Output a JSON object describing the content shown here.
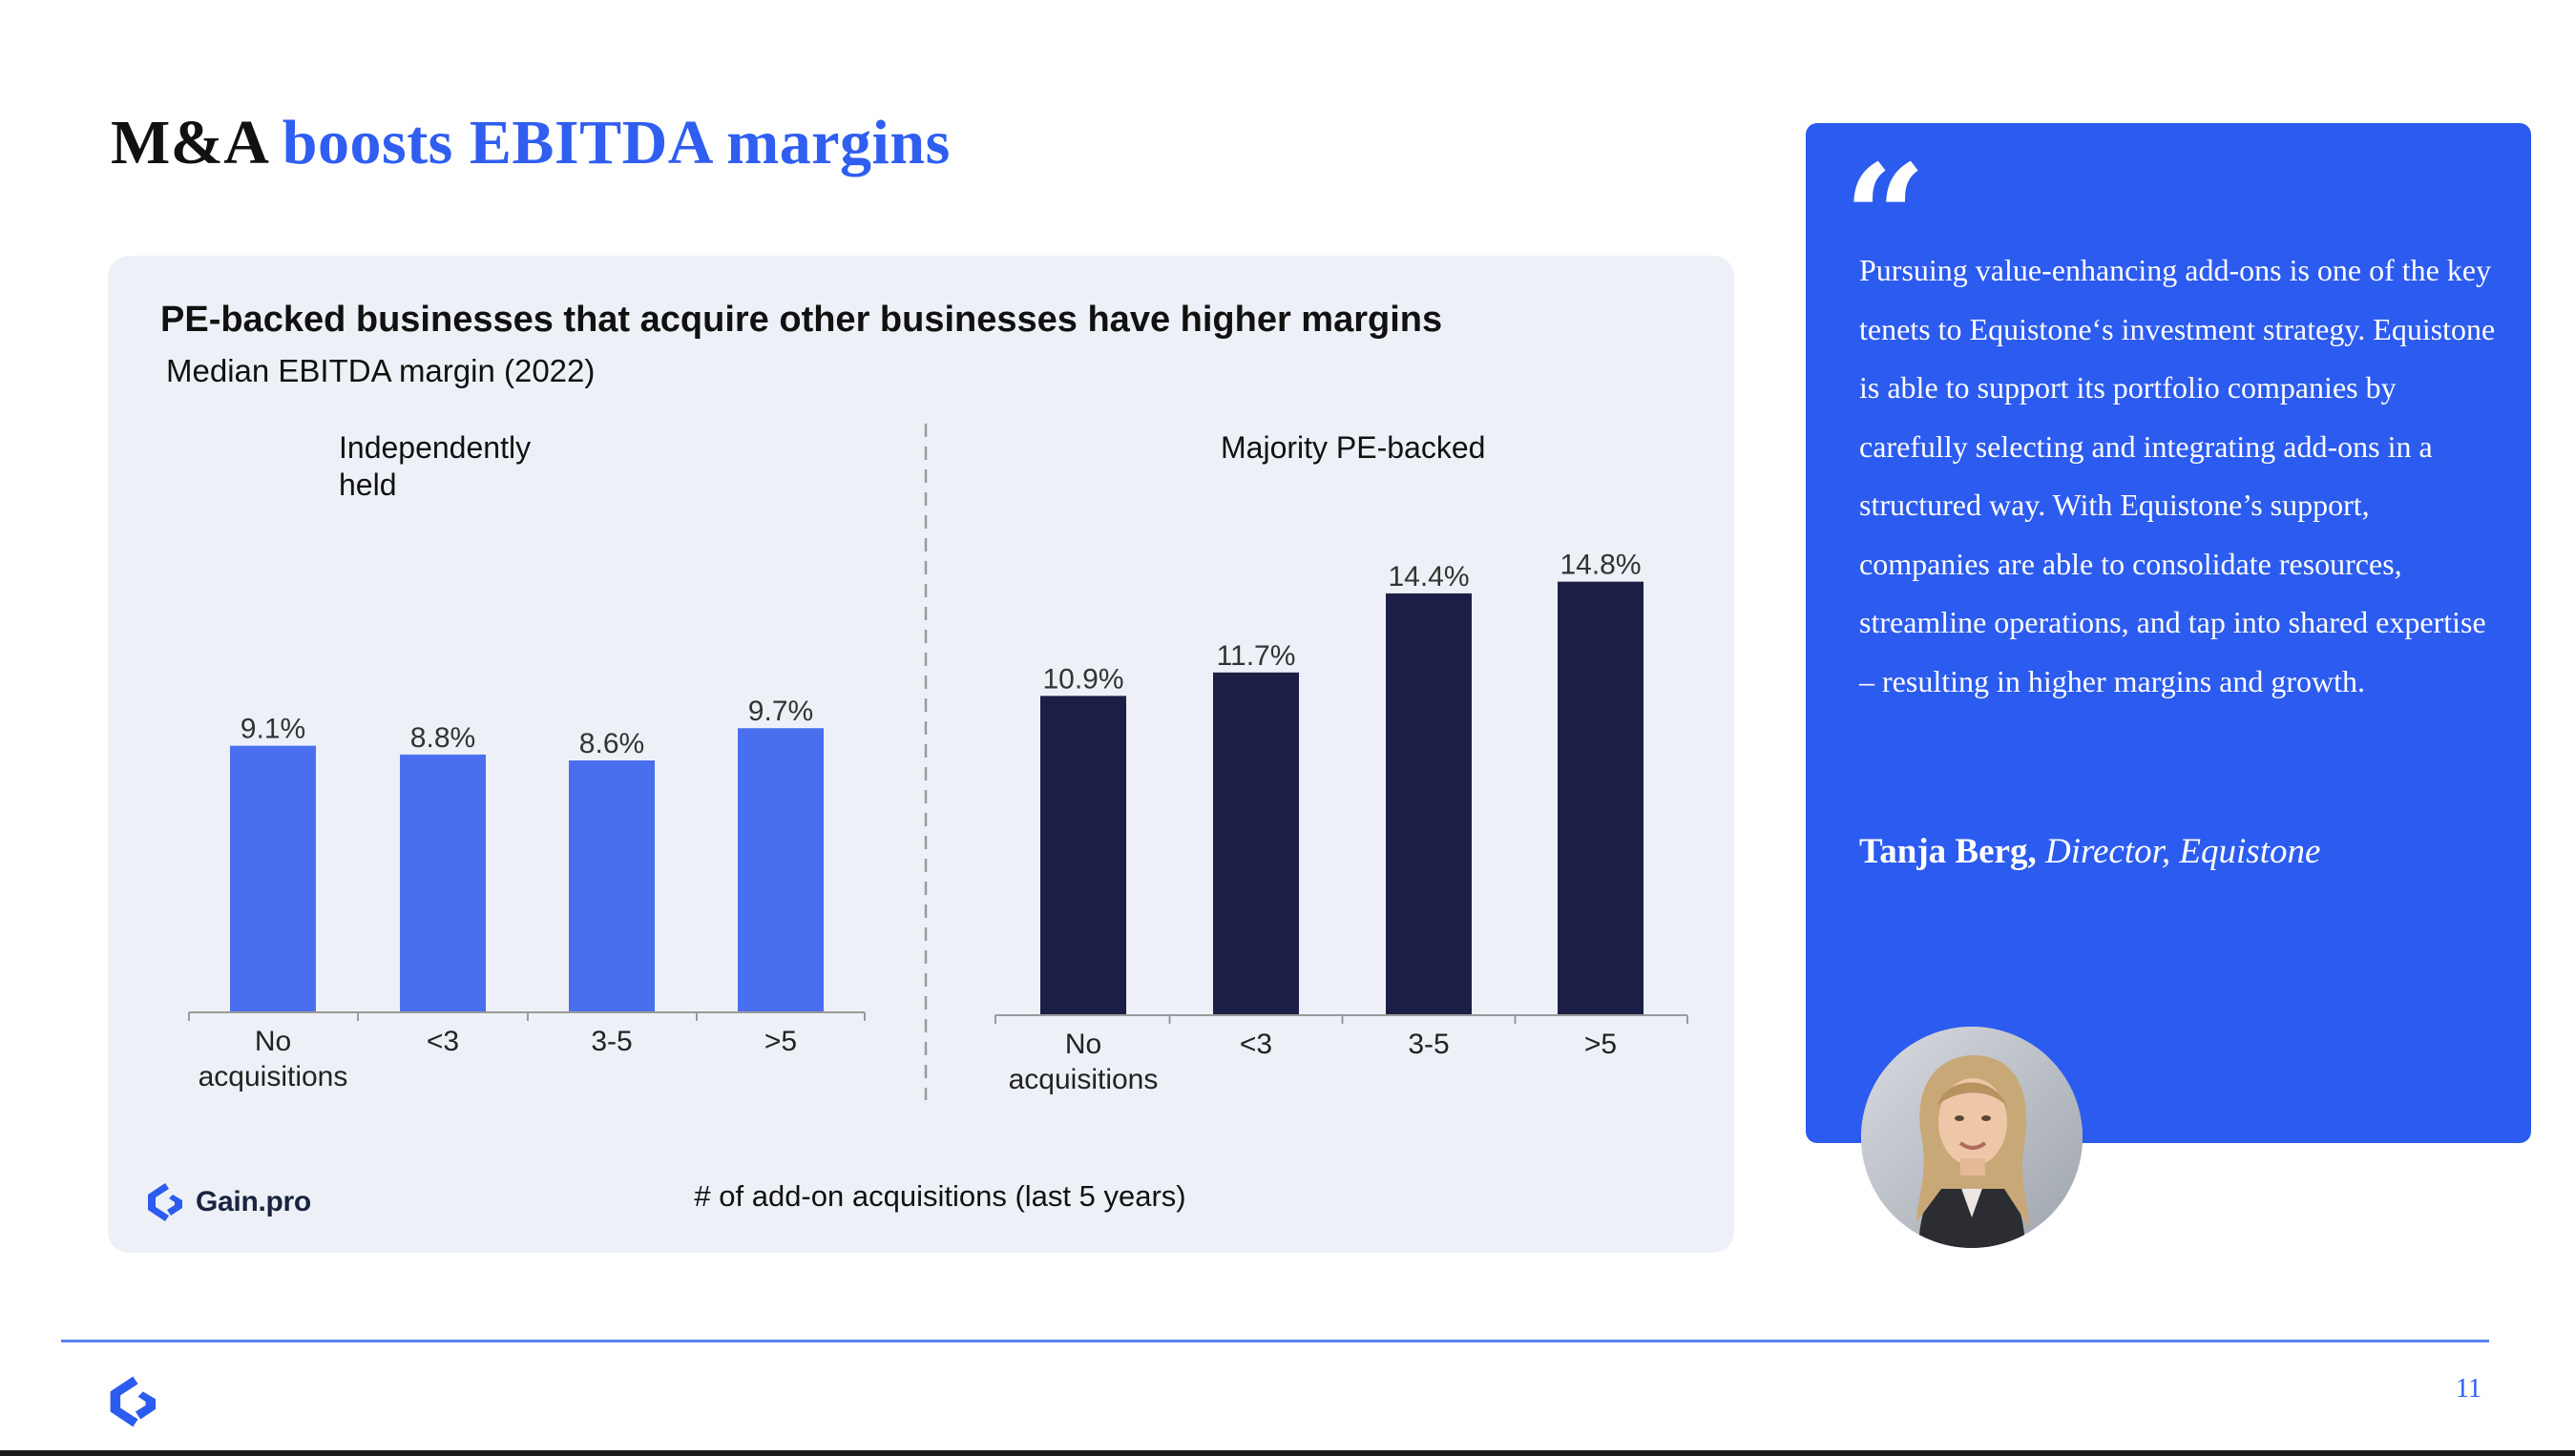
{
  "title": {
    "part1": "M&A ",
    "part2": "boosts EBITDA margins"
  },
  "chart_data": {
    "type": "bar",
    "title": "PE-backed businesses that acquire other businesses have higher margins",
    "subtitle": "Median EBITDA margin (2022)",
    "xlabel": "# of add-on acquisitions (last 5 years)",
    "categories": [
      "No acquisitions",
      "<3",
      "3-5",
      ">5"
    ],
    "groups": [
      {
        "name": "Independently held",
        "color": "#4a6fee",
        "values": [
          9.1,
          8.8,
          8.6,
          9.7
        ],
        "labels": [
          "9.1%",
          "8.8%",
          "8.6%",
          "9.7%"
        ]
      },
      {
        "name": "Majority PE-backed",
        "color": "#1b1f45",
        "values": [
          10.9,
          11.7,
          14.4,
          14.8
        ],
        "labels": [
          "10.9%",
          "11.7%",
          "14.4%",
          "14.8%"
        ]
      }
    ],
    "grid": false,
    "legend": "none"
  },
  "chart_logo_text": "Gain.pro",
  "quote": {
    "text": "Pursuing value-enhancing add-ons is one of the key tenets to Equistone‘s investment strategy. Equistone is able to support its portfolio companies by carefully selecting and integrating add-ons in a structured way. With Equistone’s support, companies are able to consolidate resources, streamline operations, and tap into shared expertise – resulting in higher margins and growth.",
    "author_name": "Tanja Berg,",
    "author_role": " Director, Equistone"
  },
  "page_number": "11",
  "colors": {
    "accent": "#2c5bef",
    "bar_light": "#4a6fee",
    "bar_dark": "#1b1f45",
    "panel_bg": "#edf1f7"
  }
}
